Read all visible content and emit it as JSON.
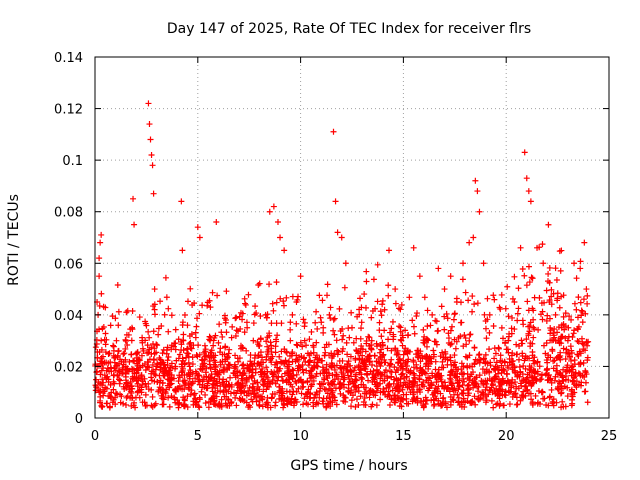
{
  "chart_data": {
    "type": "scatter",
    "title": "Day 147 of 2025, Rate Of TEC Index for receiver flrs",
    "xlabel": "GPS time / hours",
    "ylabel": "ROTI / TECUs",
    "xlim": [
      0,
      25
    ],
    "ylim": [
      0,
      0.14
    ],
    "x_ticks": [
      0,
      5,
      10,
      15,
      20,
      25
    ],
    "y_ticks": [
      0,
      0.02,
      0.04,
      0.06,
      0.08,
      0.1,
      0.12,
      0.14
    ],
    "x_tick_labels": [
      "0",
      "5",
      "10",
      "15",
      "20",
      "25"
    ],
    "y_tick_labels": [
      "0",
      "0.02",
      "0.04",
      "0.06",
      "0.08",
      "0.1",
      "0.12",
      "0.14"
    ],
    "grid": true,
    "marker": "+",
    "color": "#ff0000",
    "series": [
      {
        "name": "ROTI",
        "x": [
          0.05,
          0.1,
          0.15,
          0.2,
          0.25,
          0.3,
          0.35,
          0.1,
          0.2,
          0.3,
          0.2,
          0.25,
          0.6,
          0.9,
          1.2,
          1.5,
          1.8,
          1.85,
          1.9,
          2.0,
          2.3,
          2.6,
          2.65,
          2.7,
          2.75,
          2.8,
          2.85,
          2.9,
          3.0,
          3.3,
          3.6,
          3.9,
          4.2,
          4.25,
          4.3,
          4.6,
          4.9,
          5.0,
          5.1,
          5.3,
          5.6,
          5.9,
          6.2,
          6.5,
          6.8,
          7.1,
          7.4,
          7.7,
          8.0,
          8.3,
          8.5,
          8.7,
          8.9,
          9.0,
          9.2,
          9.5,
          9.8,
          10.0,
          10.2,
          10.5,
          10.8,
          11.1,
          11.4,
          11.6,
          11.7,
          11.8,
          12.0,
          12.2,
          12.5,
          12.8,
          13.1,
          13.4,
          13.7,
          14.0,
          14.3,
          14.6,
          14.9,
          15.2,
          15.5,
          15.8,
          16.1,
          16.4,
          16.7,
          17.0,
          17.3,
          17.6,
          17.9,
          18.2,
          18.4,
          18.5,
          18.6,
          18.7,
          18.9,
          19.2,
          19.5,
          19.8,
          20.1,
          20.4,
          20.7,
          20.9,
          21.0,
          21.1,
          21.2,
          21.5,
          21.8,
          22.1,
          22.4,
          22.7,
          23.0,
          23.3,
          23.6,
          23.8,
          23.9
        ],
        "y": [
          0.012,
          0.018,
          0.04,
          0.055,
          0.068,
          0.03,
          0.015,
          0.045,
          0.062,
          0.071,
          0.01,
          0.022,
          0.016,
          0.014,
          0.018,
          0.02,
          0.035,
          0.085,
          0.075,
          0.025,
          0.03,
          0.122,
          0.114,
          0.108,
          0.102,
          0.098,
          0.087,
          0.05,
          0.02,
          0.018,
          0.015,
          0.02,
          0.084,
          0.065,
          0.03,
          0.02,
          0.018,
          0.074,
          0.07,
          0.015,
          0.03,
          0.076,
          0.022,
          0.025,
          0.02,
          0.028,
          0.035,
          0.03,
          0.028,
          0.04,
          0.08,
          0.082,
          0.076,
          0.07,
          0.065,
          0.03,
          0.045,
          0.055,
          0.03,
          0.025,
          0.02,
          0.035,
          0.04,
          0.111,
          0.084,
          0.072,
          0.07,
          0.06,
          0.035,
          0.025,
          0.02,
          0.018,
          0.022,
          0.028,
          0.065,
          0.05,
          0.03,
          0.025,
          0.066,
          0.055,
          0.03,
          0.04,
          0.058,
          0.05,
          0.055,
          0.045,
          0.06,
          0.068,
          0.07,
          0.092,
          0.088,
          0.08,
          0.06,
          0.04,
          0.025,
          0.022,
          0.03,
          0.045,
          0.066,
          0.103,
          0.093,
          0.088,
          0.084,
          0.066,
          0.06,
          0.045,
          0.04,
          0.035,
          0.03,
          0.06,
          0.058,
          0.068,
          0.05
        ],
        "baseline_mean": 0.015,
        "baseline_spread": 0.01
      }
    ]
  }
}
